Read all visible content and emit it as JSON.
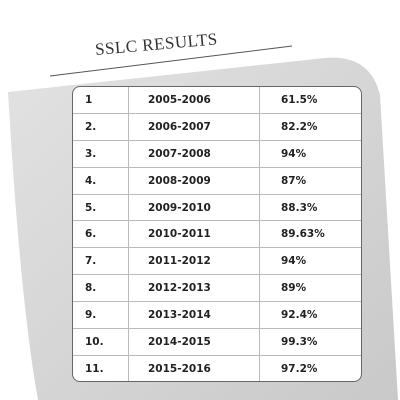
{
  "header": {
    "title": "SSLC RESULTS"
  },
  "table": {
    "rows": [
      [
        "1",
        "2005-2006",
        "61.5%"
      ],
      [
        "2.",
        "2006-2007",
        "82.2%"
      ],
      [
        "3.",
        "2007-2008",
        "94%"
      ],
      [
        "4.",
        "2008-2009",
        "87%"
      ],
      [
        "5.",
        "2009-2010",
        "88.3%"
      ],
      [
        "6.",
        "2010-2011",
        "89.63%"
      ],
      [
        "7.",
        "2011-2012",
        "94%"
      ],
      [
        "8.",
        "2012-2013",
        "89%"
      ],
      [
        "9.",
        "2013-2014",
        "92.4%"
      ],
      [
        "10.",
        "2014-2015",
        "99.3%"
      ],
      [
        "11.",
        "2015-2016",
        "97.2%"
      ]
    ]
  }
}
